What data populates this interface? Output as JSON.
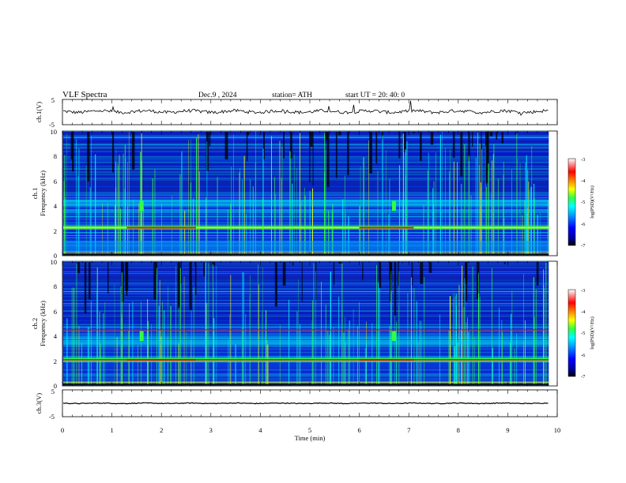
{
  "header": {
    "title": "VLF  Spectra",
    "date": "Dec.9  , 2024",
    "station": "station= ATH",
    "start_ut": "start  UT  =   20: 40: 0"
  },
  "colors": {
    "spectro_background": "#0b23b4",
    "colormap": [
      "#000000",
      "#00009c",
      "#0000ff",
      "#00a0ff",
      "#00ffff",
      "#33ff44",
      "#ffff00",
      "#ff8000",
      "#ff0000",
      "#ffffff"
    ]
  },
  "chart_data": [
    {
      "type": "line",
      "panel": "ch1-waveform",
      "ylabel": "ch.1(V)",
      "ylim": [
        -5,
        5
      ],
      "yticks": [
        "5",
        "-5"
      ],
      "description_values": {
        "baseline_v": 0.2,
        "noise_amplitude_v": 1.3
      }
    },
    {
      "type": "heatmap",
      "panel": "ch1-spectrogram",
      "ylabel": "ch.1",
      "ylabel2": "Frequency  (kHz)",
      "ylim": [
        0,
        10
      ],
      "yticks": [
        "0",
        "2",
        "4",
        "6",
        "8",
        "10"
      ],
      "colorbar": {
        "label": "log(PSD)(V²/Hz)",
        "range": [
          -7,
          -3
        ],
        "ticks": [
          "-3",
          "-4",
          "-5",
          "-6",
          "-7"
        ]
      },
      "features": {
        "bright_band_khz": [
          2.1,
          2.4
        ],
        "moderate_band_khz": [
          4.0,
          4.5
        ],
        "low_band_khz": [
          0.3,
          1.2
        ]
      }
    },
    {
      "type": "heatmap",
      "panel": "ch2-spectrogram",
      "ylabel": "ch.2",
      "ylabel2": "Frequency  (kHz)",
      "ylim": [
        0,
        10
      ],
      "yticks": [
        "0",
        "2",
        "4",
        "6",
        "8",
        "10"
      ],
      "colorbar": {
        "label": "log(PSD)(V²/Hz)",
        "range": [
          -7,
          -3
        ],
        "ticks": [
          "-3",
          "-4",
          "-5",
          "-6",
          "-7"
        ]
      },
      "features": {
        "bright_band_khz": [
          1.9,
          2.3
        ],
        "moderate_band_khz": [
          3.3,
          3.7
        ],
        "line_khz": 4.5
      }
    },
    {
      "type": "line",
      "panel": "ch3-waveform",
      "ylabel": "ch.3(V)",
      "ylim": [
        -5,
        5
      ],
      "yticks": [
        "5",
        "-5"
      ],
      "description_values": {
        "baseline_v": 0,
        "noise_amplitude_v": 0.3
      }
    }
  ],
  "xaxis": {
    "label": "Time  (min)",
    "xlim": [
      0,
      10
    ],
    "data_end_min": 9.83,
    "ticks": [
      "0",
      "1",
      "2",
      "3",
      "4",
      "5",
      "6",
      "7",
      "8",
      "9",
      "10"
    ]
  }
}
